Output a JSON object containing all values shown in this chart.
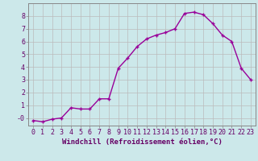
{
  "x": [
    0,
    1,
    2,
    3,
    4,
    5,
    6,
    7,
    8,
    9,
    10,
    11,
    12,
    13,
    14,
    15,
    16,
    17,
    18,
    19,
    20,
    21,
    22,
    23
  ],
  "y": [
    -0.2,
    -0.3,
    -0.1,
    0.0,
    0.8,
    0.7,
    0.7,
    1.5,
    1.5,
    3.9,
    4.7,
    5.6,
    6.2,
    6.5,
    6.7,
    7.0,
    8.2,
    8.3,
    8.1,
    7.4,
    6.5,
    6.0,
    3.9,
    3.0
  ],
  "line_color": "#990099",
  "marker": "+",
  "marker_color": "#990099",
  "background_color": "#cce8ea",
  "grid_color": "#bbbbbb",
  "xlabel": "Windchill (Refroidissement éolien,°C)",
  "xlim": [
    -0.5,
    23.5
  ],
  "ylim": [
    -0.6,
    9.0
  ],
  "xticks": [
    0,
    1,
    2,
    3,
    4,
    5,
    6,
    7,
    8,
    9,
    10,
    11,
    12,
    13,
    14,
    15,
    16,
    17,
    18,
    19,
    20,
    21,
    22,
    23
  ],
  "yticks": [
    0,
    1,
    2,
    3,
    4,
    5,
    6,
    7,
    8
  ],
  "ytick_labels": [
    "-0",
    "1",
    "2",
    "3",
    "4",
    "5",
    "6",
    "7",
    "8"
  ],
  "xlabel_color": "#660066",
  "xlabel_fontsize": 6.5,
  "tick_fontsize": 6.0,
  "tick_color": "#660066",
  "line_width": 1.0,
  "marker_size": 3.5,
  "spine_color": "#888888"
}
